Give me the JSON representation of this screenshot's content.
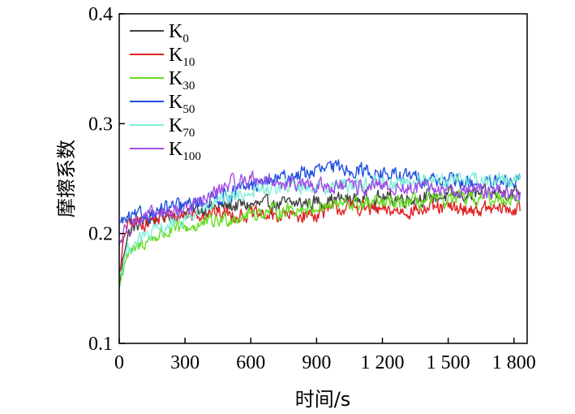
{
  "chart_data": {
    "type": "line",
    "title": "",
    "xlabel": "时间/s",
    "ylabel": "摩擦系数",
    "xlim": [
      0,
      1860
    ],
    "ylim": [
      0.1,
      0.4
    ],
    "xticks": [
      0,
      300,
      600,
      900,
      1200,
      1500,
      1800
    ],
    "xtick_labels": [
      "0",
      "300",
      "600",
      "900",
      "1 200",
      "1 500",
      "1 800"
    ],
    "yticks": [
      0.1,
      0.2,
      0.3,
      0.4
    ],
    "ytick_labels": [
      "0.1",
      "0.2",
      "0.3",
      "0.4"
    ],
    "grid": false,
    "legend_position": "top-left",
    "series": [
      {
        "name": "K0",
        "base": "K",
        "sub": "0",
        "color": "#404040",
        "x": [
          0,
          30,
          60,
          100,
          150,
          200,
          300,
          400,
          500,
          600,
          700,
          800,
          900,
          1000,
          1100,
          1200,
          1300,
          1400,
          1500,
          1600,
          1700,
          1800,
          1830
        ],
        "y": [
          0.15,
          0.195,
          0.205,
          0.21,
          0.213,
          0.216,
          0.22,
          0.223,
          0.225,
          0.226,
          0.226,
          0.227,
          0.229,
          0.231,
          0.231,
          0.232,
          0.232,
          0.233,
          0.234,
          0.235,
          0.236,
          0.238,
          0.238
        ]
      },
      {
        "name": "K10",
        "base": "K",
        "sub": "10",
        "color": "#e02020",
        "x": [
          0,
          30,
          60,
          100,
          150,
          200,
          300,
          400,
          500,
          600,
          700,
          800,
          900,
          1000,
          1100,
          1200,
          1300,
          1400,
          1500,
          1600,
          1700,
          1800,
          1830
        ],
        "y": [
          0.16,
          0.205,
          0.21,
          0.21,
          0.212,
          0.214,
          0.217,
          0.219,
          0.218,
          0.217,
          0.216,
          0.216,
          0.218,
          0.223,
          0.224,
          0.22,
          0.221,
          0.222,
          0.223,
          0.222,
          0.222,
          0.222,
          0.221
        ]
      },
      {
        "name": "K30",
        "base": "K",
        "sub": "30",
        "color": "#66dd22",
        "x": [
          0,
          30,
          60,
          100,
          150,
          200,
          300,
          400,
          500,
          600,
          700,
          800,
          900,
          1000,
          1100,
          1200,
          1300,
          1400,
          1500,
          1600,
          1700,
          1800,
          1830
        ],
        "y": [
          0.15,
          0.18,
          0.182,
          0.19,
          0.196,
          0.2,
          0.205,
          0.209,
          0.214,
          0.218,
          0.22,
          0.222,
          0.224,
          0.226,
          0.227,
          0.227,
          0.228,
          0.229,
          0.23,
          0.231,
          0.232,
          0.233,
          0.233
        ]
      },
      {
        "name": "K50",
        "base": "K",
        "sub": "50",
        "color": "#2050e0",
        "x": [
          0,
          30,
          60,
          100,
          150,
          200,
          300,
          400,
          500,
          600,
          700,
          800,
          900,
          1000,
          1100,
          1200,
          1300,
          1400,
          1500,
          1600,
          1700,
          1800,
          1830
        ],
        "y": [
          0.21,
          0.212,
          0.214,
          0.216,
          0.219,
          0.222,
          0.225,
          0.23,
          0.236,
          0.243,
          0.248,
          0.253,
          0.257,
          0.26,
          0.258,
          0.254,
          0.252,
          0.25,
          0.248,
          0.246,
          0.245,
          0.246,
          0.247
        ]
      },
      {
        "name": "K70",
        "base": "K",
        "sub": "70",
        "color": "#7ff0d8",
        "x": [
          0,
          30,
          60,
          100,
          150,
          200,
          300,
          400,
          500,
          600,
          700,
          800,
          900,
          1000,
          1100,
          1200,
          1300,
          1400,
          1500,
          1600,
          1700,
          1800,
          1830
        ],
        "y": [
          0.16,
          0.182,
          0.19,
          0.195,
          0.2,
          0.205,
          0.213,
          0.222,
          0.232,
          0.238,
          0.241,
          0.243,
          0.243,
          0.244,
          0.245,
          0.246,
          0.247,
          0.248,
          0.25,
          0.25,
          0.249,
          0.25,
          0.251
        ]
      },
      {
        "name": "K100",
        "base": "K",
        "sub": "100",
        "color": "#a04de8",
        "x": [
          0,
          30,
          60,
          100,
          150,
          200,
          300,
          400,
          500,
          600,
          700,
          800,
          900,
          1000,
          1100,
          1200,
          1300,
          1400,
          1500,
          1600,
          1700,
          1800,
          1830
        ],
        "y": [
          0.19,
          0.205,
          0.21,
          0.213,
          0.216,
          0.218,
          0.222,
          0.232,
          0.245,
          0.25,
          0.248,
          0.244,
          0.243,
          0.243,
          0.242,
          0.242,
          0.241,
          0.241,
          0.24,
          0.24,
          0.239,
          0.237,
          0.235
        ]
      }
    ]
  }
}
